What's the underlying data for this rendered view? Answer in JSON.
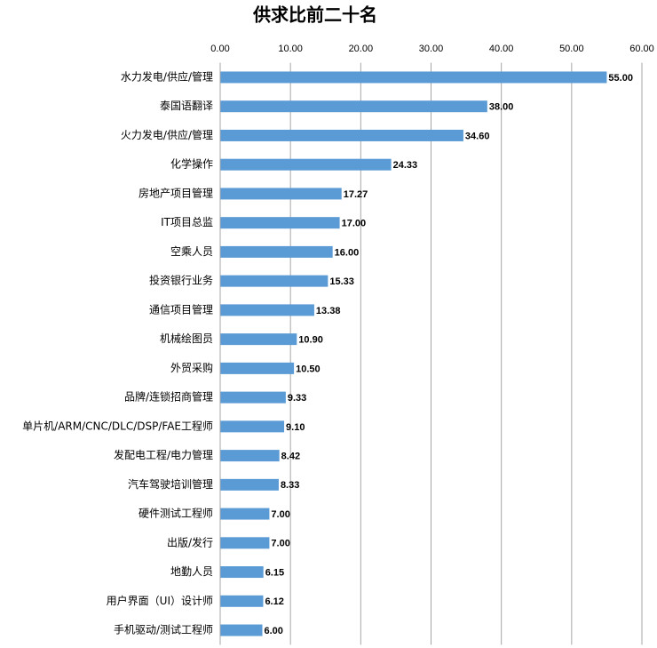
{
  "chart_data": {
    "type": "bar",
    "orientation": "horizontal",
    "title": "供求比前二十名",
    "categories": [
      "水力发电/供应/管理",
      "泰国语翻译",
      "火力发电/供应/管理",
      "化学操作",
      "房地产项目管理",
      "IT项目总监",
      "空乘人员",
      "投资银行业务",
      "通信项目管理",
      "机械绘图员",
      "外贸采购",
      "品牌/连锁招商管理",
      "单片机/ARM/CNC/DLC/DSP/FAE工程师",
      "发配电工程/电力管理",
      "汽车驾驶培训管理",
      "硬件测试工程师",
      "出版/发行",
      "地勤人员",
      "用户界面（UI）设计师",
      "手机驱动/测试工程师"
    ],
    "values": [
      55,
      38,
      34.6,
      24.33,
      17.27,
      17,
      16,
      15.33,
      13.38,
      10.9,
      10.5,
      9.33,
      9.1,
      8.42,
      8.33,
      7,
      7,
      6.15,
      6.12,
      6
    ],
    "value_labels": [
      "55.00",
      "38.00",
      "34.60",
      "24.33",
      "17.27",
      "17.00",
      "16.00",
      "15.33",
      "13.38",
      "10.90",
      "10.50",
      "9.33",
      "9.10",
      "8.42",
      "8.33",
      "7.00",
      "7.00",
      "6.15",
      "6.12",
      "6.00"
    ],
    "color": "#5b9bd5",
    "xlim": [
      0,
      60
    ],
    "xticks": [
      {
        "value": 0,
        "label": "0.00"
      },
      {
        "value": 10,
        "label": "10.00"
      },
      {
        "value": 20,
        "label": "20.00"
      },
      {
        "value": 30,
        "label": "30.00"
      },
      {
        "value": 40,
        "label": "40.00"
      },
      {
        "value": 50,
        "label": "50.00"
      },
      {
        "value": 60,
        "label": "60.00"
      }
    ],
    "grid": true
  }
}
